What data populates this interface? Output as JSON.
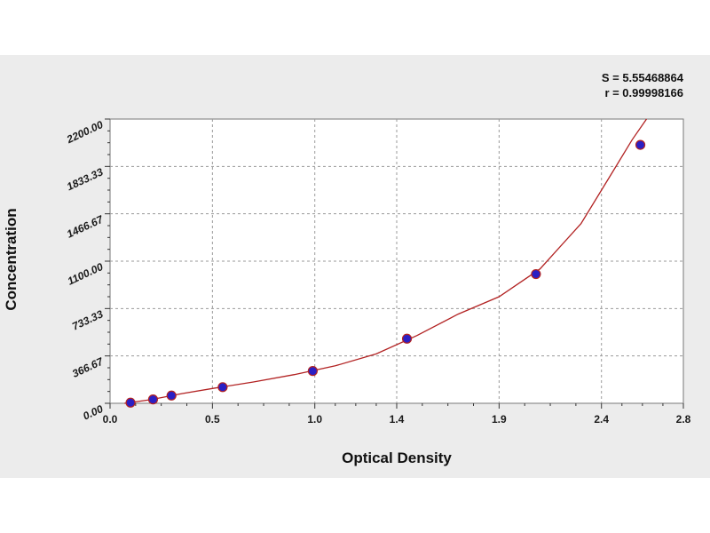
{
  "stats": {
    "s_text": "S = 5.55468864",
    "r_text": "r = 0.99998166"
  },
  "chart_data": {
    "type": "scatter",
    "title": "",
    "xlabel": "Optical Density",
    "ylabel": "Concentration",
    "xlim": [
      0,
      2.8
    ],
    "ylim": [
      0,
      2200
    ],
    "xticks": [
      0.0,
      0.5,
      1.0,
      1.4,
      1.9,
      2.4,
      2.8
    ],
    "xtick_labels": [
      "0.0",
      "0.5",
      "1.0",
      "1.4",
      "1.9",
      "2.4",
      "2.8"
    ],
    "yticks": [
      0,
      366.67,
      733.33,
      1100,
      1466.67,
      1833.33,
      2200
    ],
    "ytick_labels": [
      "0.00",
      "366.67",
      "733.33",
      "1100.00",
      "1466.67",
      "1833.33",
      "2200.00"
    ],
    "grid": true,
    "series": [
      {
        "type": "scatter",
        "x": [
          0.1,
          0.21,
          0.3,
          0.55,
          0.99,
          1.45,
          2.08,
          2.59
        ],
        "y": [
          5,
          30,
          60,
          125,
          250,
          500,
          1000,
          2000
        ],
        "color": "#2a1fc4"
      }
    ],
    "fit_curve": {
      "type": "line",
      "color": "#b22222",
      "x": [
        0.07,
        0.2,
        0.35,
        0.5,
        0.7,
        0.9,
        1.1,
        1.3,
        1.5,
        1.7,
        1.9,
        2.1,
        2.3,
        2.45,
        2.55,
        2.62
      ],
      "y": [
        0,
        28,
        75,
        115,
        165,
        222,
        290,
        382,
        525,
        690,
        825,
        1040,
        1390,
        1780,
        2040,
        2200
      ]
    }
  }
}
